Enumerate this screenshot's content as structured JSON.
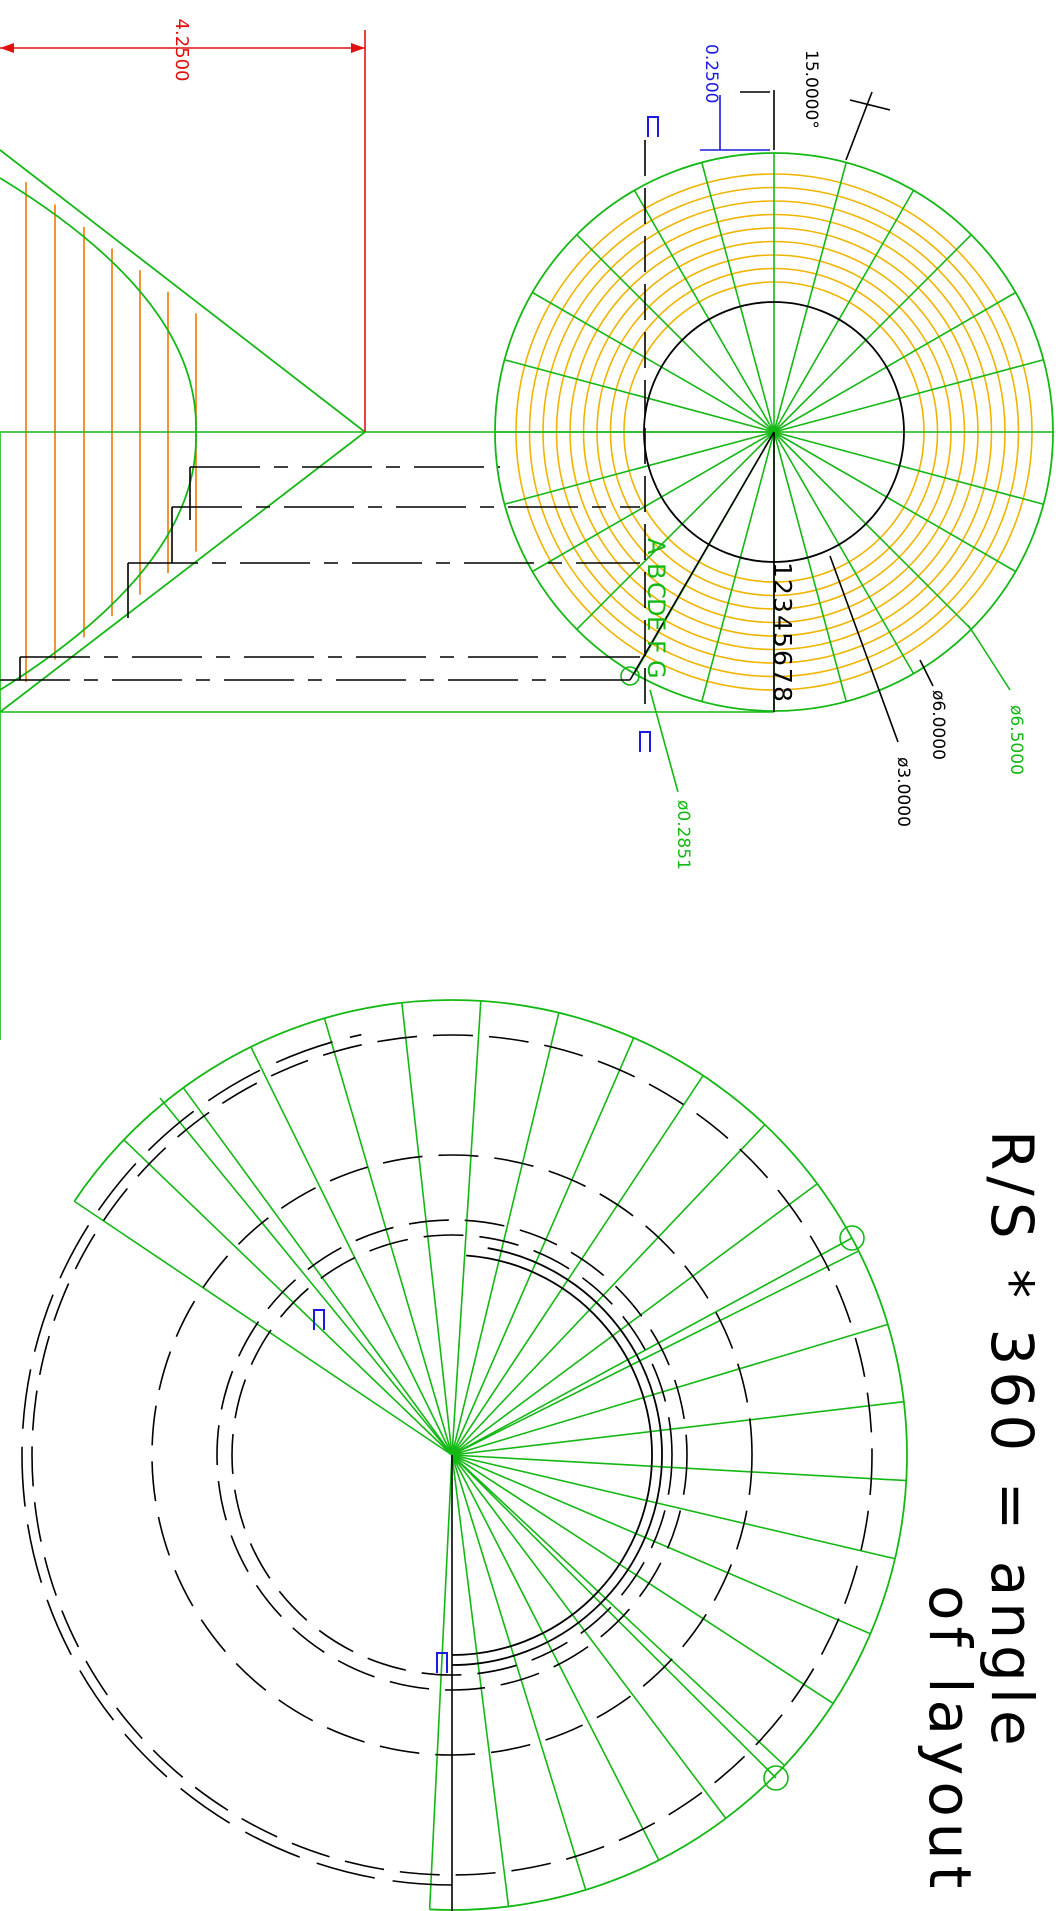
{
  "colors": {
    "geometry": "#14b814",
    "circles": "#f0b400",
    "hatch": "#f07800",
    "dimension_red": "#e01010",
    "dimension_blue": "#1a1ae0",
    "linework": "#000000"
  },
  "dimensions": {
    "overall_width": "4.2500",
    "thickness": "0.2500",
    "angle_step": "15.0000°",
    "dia_outer": "ø6.5000",
    "dia_mid": "ø6.0000",
    "dia_inner": "ø3.0000",
    "dia_hole": "ø0.2851"
  },
  "labels": {
    "numbers": [
      "1",
      "2",
      "3",
      "4",
      "5",
      "6",
      "7",
      "8"
    ],
    "letters": [
      "A",
      "B",
      "C",
      "D",
      "E",
      "F",
      "G"
    ],
    "formula_line1": "R/S * 360 = angle",
    "formula_line2": "of layout"
  },
  "icons": {
    "section_mark": "u-shape-section-icon"
  }
}
